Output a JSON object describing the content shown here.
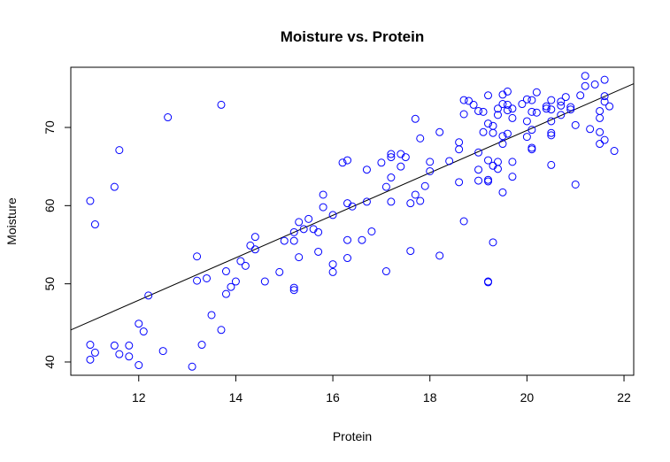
{
  "chart_data": {
    "type": "scatter",
    "title": "Moisture vs. Protein",
    "xlabel": "Protein",
    "ylabel": "Moisture",
    "xlim": [
      10.6,
      22.2
    ],
    "ylim": [
      38.3,
      77.7
    ],
    "xticks": [
      12,
      14,
      16,
      18,
      20,
      22
    ],
    "yticks": [
      40,
      50,
      60,
      70
    ],
    "grid": false,
    "point_color": "#0000ff",
    "regression_line": {
      "x": [
        10.6,
        22.2
      ],
      "y": [
        44.1,
        75.6
      ],
      "color": "#000000"
    },
    "points": [
      [
        11.0,
        60.6
      ],
      [
        11.1,
        57.6
      ],
      [
        11.5,
        62.4
      ],
      [
        11.6,
        67.1
      ],
      [
        12.6,
        71.3
      ],
      [
        13.7,
        72.9
      ],
      [
        11.0,
        42.2
      ],
      [
        11.0,
        40.3
      ],
      [
        11.1,
        41.2
      ],
      [
        11.5,
        42.1
      ],
      [
        11.6,
        41.0
      ],
      [
        11.8,
        42.1
      ],
      [
        11.8,
        40.7
      ],
      [
        12.0,
        39.6
      ],
      [
        12.0,
        44.9
      ],
      [
        12.1,
        43.9
      ],
      [
        12.2,
        48.5
      ],
      [
        12.5,
        41.4
      ],
      [
        13.1,
        39.4
      ],
      [
        13.2,
        53.5
      ],
      [
        13.2,
        50.4
      ],
      [
        13.3,
        42.2
      ],
      [
        13.4,
        50.7
      ],
      [
        13.5,
        46.0
      ],
      [
        13.7,
        44.1
      ],
      [
        13.8,
        48.7
      ],
      [
        13.8,
        51.6
      ],
      [
        13.9,
        49.6
      ],
      [
        14.0,
        50.3
      ],
      [
        14.1,
        52.9
      ],
      [
        14.2,
        52.3
      ],
      [
        14.3,
        54.9
      ],
      [
        14.4,
        56.0
      ],
      [
        14.4,
        54.4
      ],
      [
        14.6,
        50.3
      ],
      [
        14.9,
        51.5
      ],
      [
        15.0,
        55.5
      ],
      [
        15.2,
        56.6
      ],
      [
        15.2,
        55.5
      ],
      [
        15.2,
        49.5
      ],
      [
        15.2,
        49.2
      ],
      [
        15.3,
        57.9
      ],
      [
        15.3,
        53.4
      ],
      [
        15.4,
        57.0
      ],
      [
        15.5,
        58.3
      ],
      [
        15.6,
        57.0
      ],
      [
        15.7,
        54.1
      ],
      [
        15.7,
        56.6
      ],
      [
        15.8,
        61.4
      ],
      [
        15.8,
        59.8
      ],
      [
        16.0,
        58.8
      ],
      [
        16.0,
        52.5
      ],
      [
        16.0,
        51.5
      ],
      [
        16.2,
        65.5
      ],
      [
        16.3,
        65.8
      ],
      [
        16.3,
        60.3
      ],
      [
        16.3,
        55.6
      ],
      [
        16.3,
        53.3
      ],
      [
        16.4,
        59.9
      ],
      [
        16.6,
        55.6
      ],
      [
        16.7,
        64.6
      ],
      [
        16.7,
        60.5
      ],
      [
        16.8,
        56.7
      ],
      [
        17.0,
        65.5
      ],
      [
        17.1,
        62.4
      ],
      [
        17.1,
        51.6
      ],
      [
        17.2,
        66.6
      ],
      [
        17.2,
        66.2
      ],
      [
        17.2,
        63.6
      ],
      [
        17.2,
        60.5
      ],
      [
        17.4,
        66.6
      ],
      [
        17.4,
        65.0
      ],
      [
        17.5,
        66.2
      ],
      [
        17.6,
        60.3
      ],
      [
        17.6,
        54.2
      ],
      [
        17.7,
        71.1
      ],
      [
        17.7,
        61.4
      ],
      [
        17.8,
        68.6
      ],
      [
        17.8,
        60.6
      ],
      [
        17.9,
        62.5
      ],
      [
        18.0,
        65.6
      ],
      [
        18.0,
        64.4
      ],
      [
        18.2,
        69.4
      ],
      [
        18.2,
        53.6
      ],
      [
        18.4,
        65.7
      ],
      [
        18.6,
        68.1
      ],
      [
        18.6,
        67.2
      ],
      [
        18.6,
        63.0
      ],
      [
        18.7,
        73.5
      ],
      [
        18.7,
        71.7
      ],
      [
        18.7,
        58.0
      ],
      [
        18.8,
        73.4
      ],
      [
        18.9,
        72.9
      ],
      [
        19.0,
        72.1
      ],
      [
        19.0,
        66.8
      ],
      [
        19.0,
        64.6
      ],
      [
        19.0,
        63.2
      ],
      [
        19.1,
        72.0
      ],
      [
        19.1,
        69.4
      ],
      [
        19.2,
        74.1
      ],
      [
        19.2,
        70.5
      ],
      [
        19.2,
        65.8
      ],
      [
        19.2,
        63.3
      ],
      [
        19.2,
        63.1
      ],
      [
        19.2,
        50.3
      ],
      [
        19.2,
        50.2
      ],
      [
        19.3,
        70.2
      ],
      [
        19.3,
        69.3
      ],
      [
        19.3,
        65.1
      ],
      [
        19.3,
        55.3
      ],
      [
        19.4,
        72.4
      ],
      [
        19.4,
        71.6
      ],
      [
        19.4,
        65.6
      ],
      [
        19.4,
        64.7
      ],
      [
        19.5,
        74.2
      ],
      [
        19.5,
        73.0
      ],
      [
        19.5,
        68.9
      ],
      [
        19.5,
        67.9
      ],
      [
        19.5,
        61.7
      ],
      [
        19.6,
        74.6
      ],
      [
        19.6,
        72.9
      ],
      [
        19.6,
        72.2
      ],
      [
        19.6,
        69.2
      ],
      [
        19.7,
        72.4
      ],
      [
        19.7,
        71.2
      ],
      [
        19.7,
        65.6
      ],
      [
        19.7,
        63.7
      ],
      [
        19.9,
        73.0
      ],
      [
        20.0,
        73.6
      ],
      [
        20.0,
        70.8
      ],
      [
        20.0,
        68.8
      ],
      [
        20.1,
        73.5
      ],
      [
        20.1,
        72.0
      ],
      [
        20.1,
        69.7
      ],
      [
        20.1,
        67.4
      ],
      [
        20.1,
        67.2
      ],
      [
        20.2,
        74.5
      ],
      [
        20.2,
        71.9
      ],
      [
        20.4,
        72.7
      ],
      [
        20.4,
        72.4
      ],
      [
        20.5,
        73.5
      ],
      [
        20.5,
        72.3
      ],
      [
        20.5,
        70.8
      ],
      [
        20.5,
        69.3
      ],
      [
        20.5,
        69.0
      ],
      [
        20.5,
        65.2
      ],
      [
        20.7,
        73.3
      ],
      [
        20.7,
        72.8
      ],
      [
        20.7,
        71.6
      ],
      [
        20.8,
        73.9
      ],
      [
        20.9,
        72.6
      ],
      [
        20.9,
        72.3
      ],
      [
        21.0,
        70.3
      ],
      [
        21.0,
        62.7
      ],
      [
        21.1,
        74.1
      ],
      [
        21.2,
        76.6
      ],
      [
        21.2,
        75.3
      ],
      [
        21.3,
        69.8
      ],
      [
        21.4,
        75.5
      ],
      [
        21.5,
        72.1
      ],
      [
        21.5,
        71.2
      ],
      [
        21.5,
        69.4
      ],
      [
        21.5,
        67.9
      ],
      [
        21.6,
        76.1
      ],
      [
        21.6,
        74.0
      ],
      [
        21.6,
        73.3
      ],
      [
        21.6,
        68.4
      ],
      [
        21.7,
        72.7
      ],
      [
        21.8,
        67.0
      ]
    ]
  }
}
